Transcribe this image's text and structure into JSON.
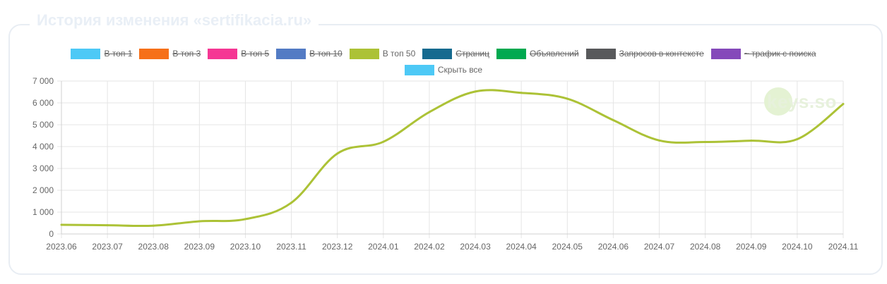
{
  "page": {
    "title": "История изменения «sertifikacia.ru»",
    "watermark": "keys.so"
  },
  "legend": [
    {
      "label": "В топ 1",
      "color": "#4dc9f6",
      "hidden": true
    },
    {
      "label": "В топ 3",
      "color": "#f67019",
      "hidden": true
    },
    {
      "label": "В топ 5",
      "color": "#f53794",
      "hidden": true
    },
    {
      "label": "В топ 10",
      "color": "#537bc4",
      "hidden": true
    },
    {
      "label": "В топ 50",
      "color": "#acc236",
      "hidden": false
    },
    {
      "label": "Страниц",
      "color": "#166a8f",
      "hidden": true
    },
    {
      "label": "Объявлений",
      "color": "#00a950",
      "hidden": true
    },
    {
      "label": "Запросов в контексте",
      "color": "#58595b",
      "hidden": true
    },
    {
      "label": "~ трафик с поиска",
      "color": "#8549ba",
      "hidden": true
    }
  ],
  "hide_all": {
    "label": "Скрыть все",
    "color": "#4dc9f6"
  },
  "chart_data": {
    "type": "line",
    "categories": [
      "2023.06",
      "2023.07",
      "2023.08",
      "2023.09",
      "2023.10",
      "2023.11",
      "2023.12",
      "2024.01",
      "2024.02",
      "2024.03",
      "2024.04",
      "2024.05",
      "2024.06",
      "2024.07",
      "2024.08",
      "2024.09",
      "2024.10",
      "2024.11"
    ],
    "series": [
      {
        "name": "В топ 50",
        "color": "#acc236",
        "values": [
          420,
          400,
          380,
          580,
          680,
          1430,
          3680,
          4220,
          5580,
          6520,
          6460,
          6190,
          5210,
          4280,
          4210,
          4270,
          4340,
          5950
        ]
      }
    ],
    "ylim": [
      0,
      7000
    ],
    "yticks": [
      0,
      1000,
      2000,
      3000,
      4000,
      5000,
      6000,
      7000
    ],
    "ytick_labels": [
      "0",
      "1 000",
      "2 000",
      "3 000",
      "4 000",
      "5 000",
      "6 000",
      "7 000"
    ],
    "grid": true,
    "legend_position": "top"
  }
}
